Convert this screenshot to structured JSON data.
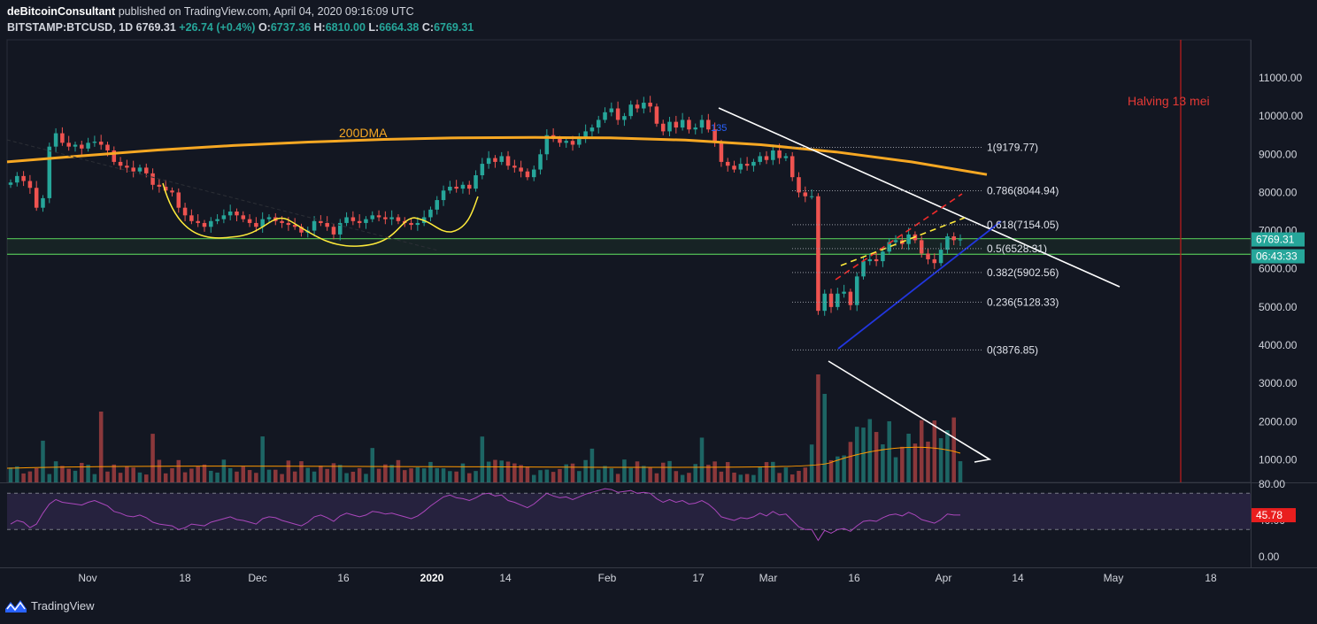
{
  "header": {
    "author": "deBitcoinConsultant",
    "published": "published on TradingView.com, April 04, 2020 09:16:09 UTC",
    "symbol": "BITSTAMP:BTCUSD, 1D",
    "last": "6769.31",
    "change": "+26.74 (+0.4%)",
    "open_label": "O:",
    "open": "6737.36",
    "high_label": "H:",
    "high": "6810.00",
    "low_label": "L:",
    "low": "6664.38",
    "close_label": "C:",
    "close": "6769.31"
  },
  "colors": {
    "background": "#131722",
    "up": "#26a69a",
    "down": "#ef5350",
    "ma200": "#f7a823",
    "fib": "#d1d4dc",
    "support": "#4caf50",
    "halving": "#b71c1c",
    "rsi": "#ab47bc",
    "price_tag": "#26a69a",
    "rsi_tag": "#e91e1e"
  },
  "branding": {
    "icon": "tradingview-logo-icon",
    "label": "TradingView"
  },
  "chart_data": {
    "type": "candlestick",
    "interval": "1D",
    "price_axis": {
      "ticks": [
        1000,
        2000,
        3000,
        4000,
        5000,
        6000,
        7000,
        8000,
        9000,
        10000,
        11000
      ],
      "tick_labels": [
        "1000.00",
        "2000.00",
        "3000.00",
        "4000.00",
        "5000.00",
        "6000.00",
        "7000.00",
        "8000.00",
        "9000.00",
        "10000.00",
        "11000.00"
      ],
      "ylim": [
        0,
        11500
      ]
    },
    "time_axis": {
      "labels": [
        "Nov",
        "18",
        "Dec",
        "16",
        "2020",
        "14",
        "Feb",
        "17",
        "Mar",
        "16",
        "Apr",
        "14",
        "May",
        "18"
      ],
      "bold": [
        "2020"
      ]
    },
    "ohlc_sample_closes": [
      8260,
      8430,
      8300,
      8120,
      7600,
      7850,
      9200,
      9550,
      9300,
      9200,
      9250,
      9150,
      9300,
      9330,
      9250,
      9100,
      8800,
      8700,
      8650,
      8550,
      8650,
      8500,
      8200,
      8150,
      8050,
      8000,
      7600,
      7400,
      7250,
      7200,
      7100,
      7250,
      7300,
      7400,
      7500,
      7400,
      7300,
      7200,
      7100,
      7300,
      7350,
      7250,
      7200,
      7150,
      7100,
      6950,
      7000,
      7250,
      7200,
      7100,
      6900,
      7200,
      7350,
      7250,
      7200,
      7300,
      7400,
      7350,
      7300,
      7350,
      7250,
      7200,
      7150,
      7200,
      7350,
      7550,
      7800,
      8050,
      8150,
      8100,
      8200,
      8100,
      8450,
      8750,
      8900,
      8800,
      8950,
      8700,
      8650,
      8550,
      8400,
      8600,
      9000,
      9500,
      9400,
      9300,
      9350,
      9250,
      9400,
      9600,
      9700,
      9900,
      10100,
      10200,
      9900,
      10000,
      10300,
      10200,
      10350,
      10250,
      9800,
      9600,
      9850,
      9700,
      9900,
      9650,
      9700,
      9900,
      9650,
      9300,
      8800,
      8700,
      8600,
      8750,
      8700,
      8800,
      8950,
      8850,
      9100,
      8900,
      8950,
      8400,
      8000,
      7900,
      7900,
      4900,
      5350,
      5000,
      5350,
      5400,
      5050,
      5800,
      6200,
      6250,
      6200,
      6450,
      6700,
      6750,
      6650,
      6900,
      6750,
      6400,
      6250,
      6150,
      6500,
      6850,
      6750,
      6769
    ],
    "moving_average": {
      "label": "200DMA",
      "values": [
        8800,
        8960,
        9110,
        9230,
        9320,
        9390,
        9430,
        9440,
        9430,
        9370,
        9250,
        9060,
        8800,
        8470
      ]
    },
    "annotations": [
      {
        "type": "text",
        "text": "200DMA"
      },
      {
        "type": "text",
        "text": "Halving 13 mei"
      },
      {
        "type": "text",
        "text": "135"
      }
    ],
    "fibonacci": [
      {
        "level": "1",
        "price": 9179.77,
        "label": "1(9179.77)"
      },
      {
        "level": "0.786",
        "price": 8044.94,
        "label": "0.786(8044.94)"
      },
      {
        "level": "0.618",
        "price": 7154.05,
        "label": "0.618(7154.05)"
      },
      {
        "level": "0.5",
        "price": 6528.31,
        "label": "0.5(6528.31)"
      },
      {
        "level": "0.382",
        "price": 5902.56,
        "label": "0.382(5902.56)"
      },
      {
        "level": "0.236",
        "price": 5128.33,
        "label": "0.236(5128.33)"
      },
      {
        "level": "0",
        "price": 3876.85,
        "label": "0(3876.85)"
      }
    ],
    "support_band": [
      6380,
      6790
    ],
    "price_tags": {
      "last": "6769.31",
      "countdown": "06:43:33"
    },
    "rsi": {
      "axis_labels": [
        "80.00",
        "40.00",
        "0.00"
      ],
      "axis_values": [
        80,
        40,
        0
      ],
      "overbought": 70,
      "oversold": 30,
      "last": "45.78",
      "values": [
        36,
        40,
        38,
        32,
        36,
        48,
        58,
        63,
        60,
        59,
        58,
        57,
        60,
        62,
        59,
        56,
        50,
        48,
        45,
        44,
        46,
        43,
        38,
        36,
        35,
        34,
        30,
        32,
        36,
        35,
        34,
        38,
        40,
        42,
        44,
        41,
        40,
        38,
        36,
        42,
        44,
        43,
        40,
        38,
        36,
        34,
        38,
        44,
        46,
        43,
        39,
        45,
        48,
        46,
        44,
        46,
        50,
        49,
        47,
        48,
        46,
        44,
        42,
        45,
        50,
        56,
        61,
        66,
        68,
        65,
        64,
        62,
        65,
        69,
        70,
        67,
        68,
        62,
        60,
        57,
        54,
        58,
        64,
        70,
        67,
        65,
        66,
        63,
        66,
        69,
        71,
        73,
        75,
        74,
        71,
        72,
        73,
        70,
        71,
        70,
        64,
        60,
        63,
        60,
        62,
        58,
        59,
        62,
        58,
        52,
        44,
        42,
        40,
        43,
        42,
        44,
        48,
        45,
        50,
        46,
        47,
        40,
        33,
        30,
        30,
        18,
        29,
        26,
        30,
        31,
        28,
        34,
        39,
        40,
        39,
        43,
        46,
        47,
        45,
        49,
        46,
        41,
        39,
        37,
        41,
        47,
        46,
        46
      ]
    }
  }
}
